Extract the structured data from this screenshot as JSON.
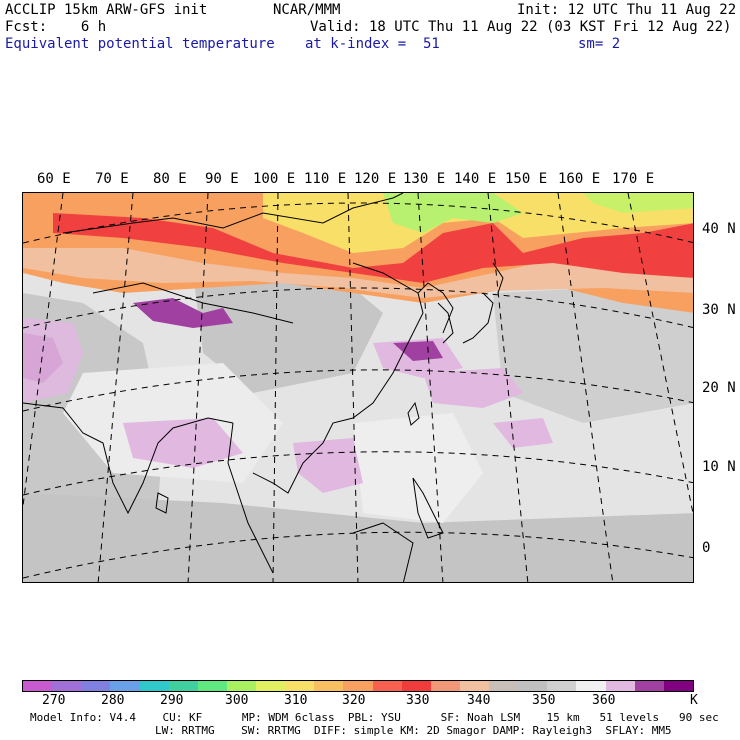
{
  "header": {
    "line1_left": "ACCLIP 15km ARW-GFS init",
    "line1_center": "NCAR/MMM",
    "line1_right": "Init: 12 UTC Thu 11 Aug 22",
    "line2_left": "Fcst:    6 h",
    "line2_right": "Valid: 18 UTC Thu 11 Aug 22 (03 KST Fri 12 Aug 22)",
    "line3_left": "Equivalent potential temperature",
    "line3_mid": "at k-index =  51",
    "line3_right": "sm= 2"
  },
  "map": {
    "longitude_labels": [
      "60 E",
      "70 E",
      "80 E",
      "90 E",
      "100 E",
      "110 E",
      "120 E",
      "130 E",
      "140 E",
      "150 E",
      "160 E",
      "170 E"
    ],
    "latitude_labels": [
      "40 N",
      "30 N",
      "20 N",
      "10 N",
      "0"
    ]
  },
  "colorbar": {
    "labels": [
      "270",
      "280",
      "290",
      "300",
      "310",
      "320",
      "330",
      "340",
      "350",
      "360",
      "K"
    ],
    "colors": [
      "#c85ad0",
      "#a070d8",
      "#8080e0",
      "#6aa0e8",
      "#30c8c8",
      "#40d0a0",
      "#60e880",
      "#a8f060",
      "#e0f060",
      "#f8e068",
      "#f8c060",
      "#f8a060",
      "#f86050",
      "#f03c3c",
      "#f09878",
      "#f0c0a0",
      "#c8c0b8",
      "#c0c0c0",
      "#d0d0d0",
      "#f0f0f0",
      "#e0b8e0",
      "#a040a0",
      "#800080"
    ]
  },
  "footer": {
    "line1": "Model Info: V4.4    CU: KF      MP: WDM 6class  PBL: YSU      SF: Noah LSM    15 km   51 levels   90 sec",
    "line2": "LW: RRTMG    SW: RRTMG  DIFF: simple KM: 2D Smagor DAMP: Rayleigh3  SFLAY: MM5"
  }
}
